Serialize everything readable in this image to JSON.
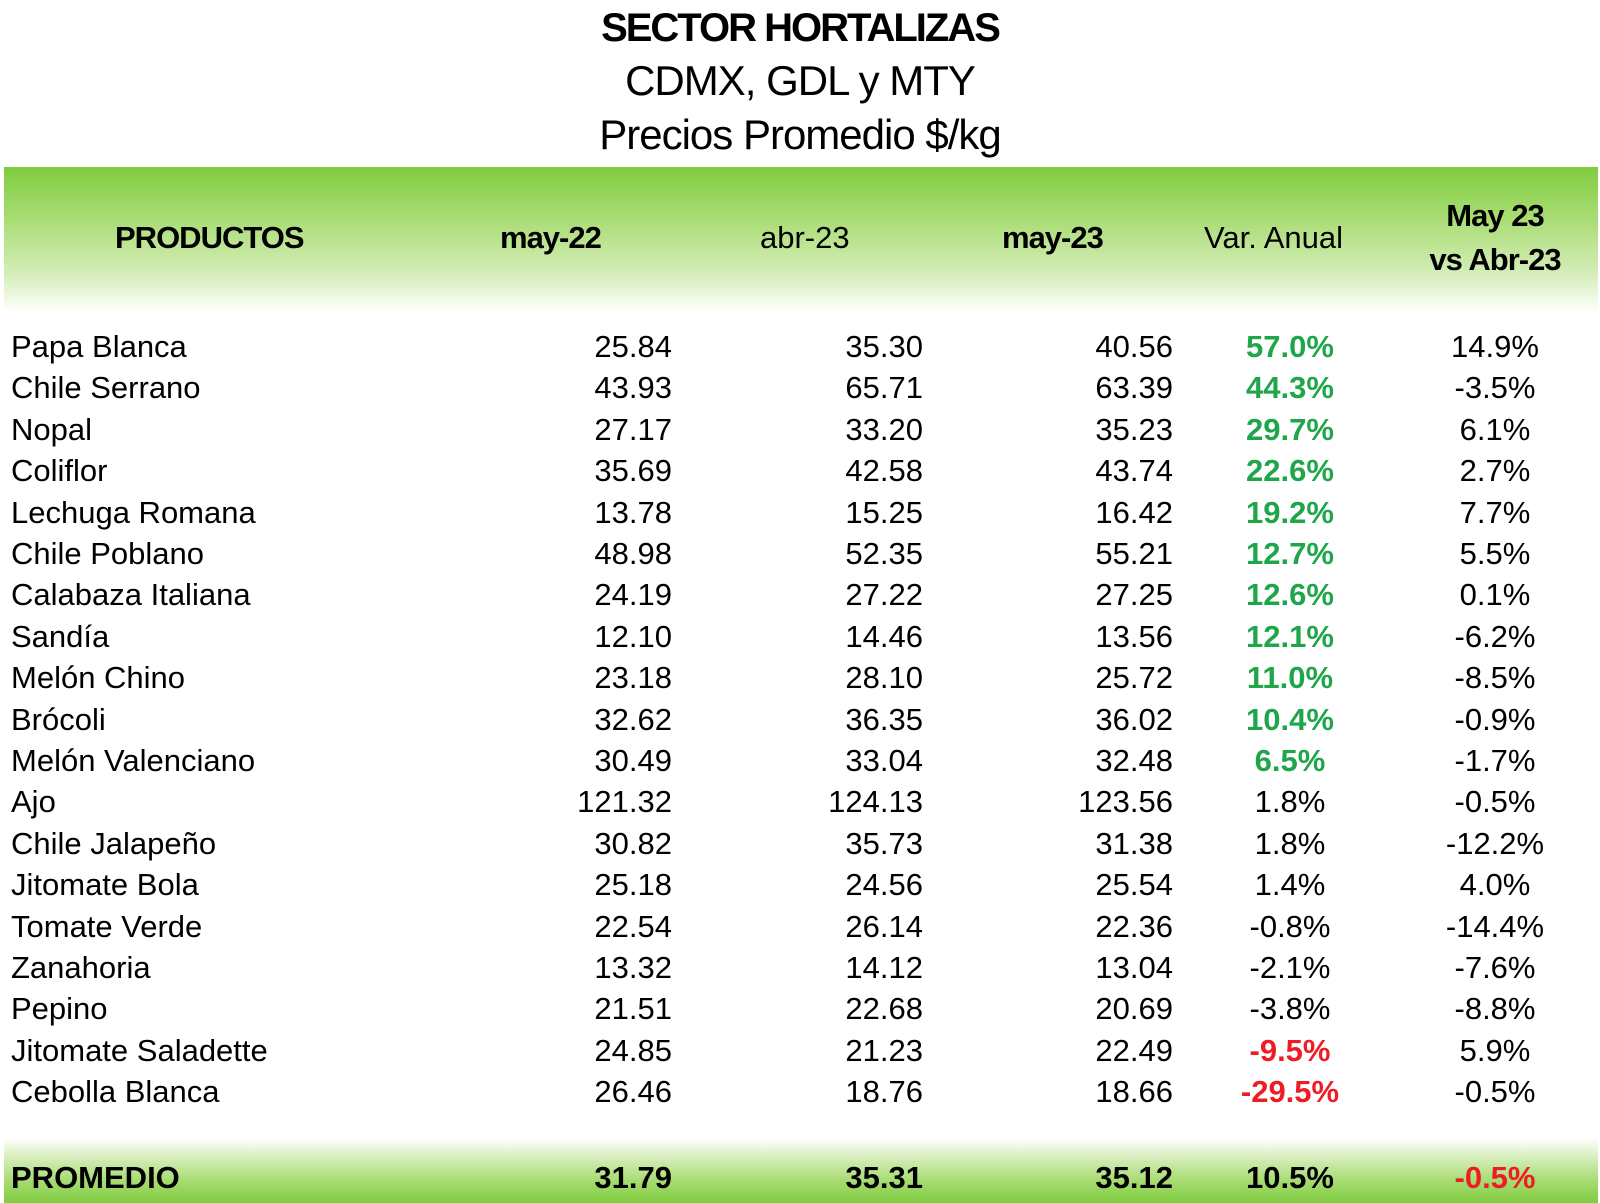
{
  "titles": {
    "main": "SECTOR HORTALIZAS",
    "sub": "CDMX, GDL y MTY",
    "sub2": "Precios Promedio $/kg"
  },
  "header": {
    "productos": "PRODUCTOS",
    "may22": "may-22",
    "abr23": "abr-23",
    "may23": "may-23",
    "var_anual": "Var. Anual",
    "vs_line1": "May 23",
    "vs_line2": "vs Abr-23"
  },
  "colors": {
    "positive": "#1fa64a",
    "negative": "#ee1c24",
    "band": "#7fcc3f"
  },
  "rows": [
    {
      "producto": "Papa Blanca",
      "may22": "25.84",
      "abr23": "35.30",
      "may23": "40.56",
      "var_anual": "57.0%",
      "var_style": "green",
      "vs": "14.9%"
    },
    {
      "producto": "Chile Serrano",
      "may22": "43.93",
      "abr23": "65.71",
      "may23": "63.39",
      "var_anual": "44.3%",
      "var_style": "green",
      "vs": "-3.5%"
    },
    {
      "producto": "Nopal",
      "may22": "27.17",
      "abr23": "33.20",
      "may23": "35.23",
      "var_anual": "29.7%",
      "var_style": "green",
      "vs": "6.1%"
    },
    {
      "producto": "Coliflor",
      "may22": "35.69",
      "abr23": "42.58",
      "may23": "43.74",
      "var_anual": "22.6%",
      "var_style": "green",
      "vs": "2.7%"
    },
    {
      "producto": "Lechuga Romana",
      "may22": "13.78",
      "abr23": "15.25",
      "may23": "16.42",
      "var_anual": "19.2%",
      "var_style": "green",
      "vs": "7.7%"
    },
    {
      "producto": "Chile Poblano",
      "may22": "48.98",
      "abr23": "52.35",
      "may23": "55.21",
      "var_anual": "12.7%",
      "var_style": "green",
      "vs": "5.5%"
    },
    {
      "producto": "Calabaza Italiana",
      "may22": "24.19",
      "abr23": "27.22",
      "may23": "27.25",
      "var_anual": "12.6%",
      "var_style": "green",
      "vs": "0.1%"
    },
    {
      "producto": "Sandía",
      "may22": "12.10",
      "abr23": "14.46",
      "may23": "13.56",
      "var_anual": "12.1%",
      "var_style": "green",
      "vs": "-6.2%"
    },
    {
      "producto": "Melón Chino",
      "may22": "23.18",
      "abr23": "28.10",
      "may23": "25.72",
      "var_anual": "11.0%",
      "var_style": "green",
      "vs": "-8.5%"
    },
    {
      "producto": "Brócoli",
      "may22": "32.62",
      "abr23": "36.35",
      "may23": "36.02",
      "var_anual": "10.4%",
      "var_style": "green",
      "vs": "-0.9%"
    },
    {
      "producto": "Melón Valenciano",
      "may22": "30.49",
      "abr23": "33.04",
      "may23": "32.48",
      "var_anual": "6.5%",
      "var_style": "green",
      "vs": "-1.7%"
    },
    {
      "producto": "Ajo",
      "may22": "121.32",
      "abr23": "124.13",
      "may23": "123.56",
      "var_anual": "1.8%",
      "var_style": "normal",
      "vs": "-0.5%"
    },
    {
      "producto": "Chile Jalapeño",
      "may22": "30.82",
      "abr23": "35.73",
      "may23": "31.38",
      "var_anual": "1.8%",
      "var_style": "normal",
      "vs": "-12.2%"
    },
    {
      "producto": "Jitomate Bola",
      "may22": "25.18",
      "abr23": "24.56",
      "may23": "25.54",
      "var_anual": "1.4%",
      "var_style": "normal",
      "vs": "4.0%"
    },
    {
      "producto": "Tomate Verde",
      "may22": "22.54",
      "abr23": "26.14",
      "may23": "22.36",
      "var_anual": "-0.8%",
      "var_style": "normal",
      "vs": "-14.4%"
    },
    {
      "producto": "Zanahoria",
      "may22": "13.32",
      "abr23": "14.12",
      "may23": "13.04",
      "var_anual": "-2.1%",
      "var_style": "normal",
      "vs": "-7.6%"
    },
    {
      "producto": "Pepino",
      "may22": "21.51",
      "abr23": "22.68",
      "may23": "20.69",
      "var_anual": "-3.8%",
      "var_style": "normal",
      "vs": "-8.8%"
    },
    {
      "producto": "Jitomate Saladette",
      "may22": "24.85",
      "abr23": "21.23",
      "may23": "22.49",
      "var_anual": "-9.5%",
      "var_style": "red",
      "vs": "5.9%"
    },
    {
      "producto": "Cebolla Blanca",
      "may22": "26.46",
      "abr23": "18.76",
      "may23": "18.66",
      "var_anual": "-29.5%",
      "var_style": "red",
      "vs": "-0.5%"
    }
  ],
  "footer": {
    "label": "PROMEDIO",
    "may22": "31.79",
    "abr23": "35.31",
    "may23": "35.12",
    "var_anual": "10.5%",
    "vs": "-0.5%",
    "vs_style": "red"
  }
}
